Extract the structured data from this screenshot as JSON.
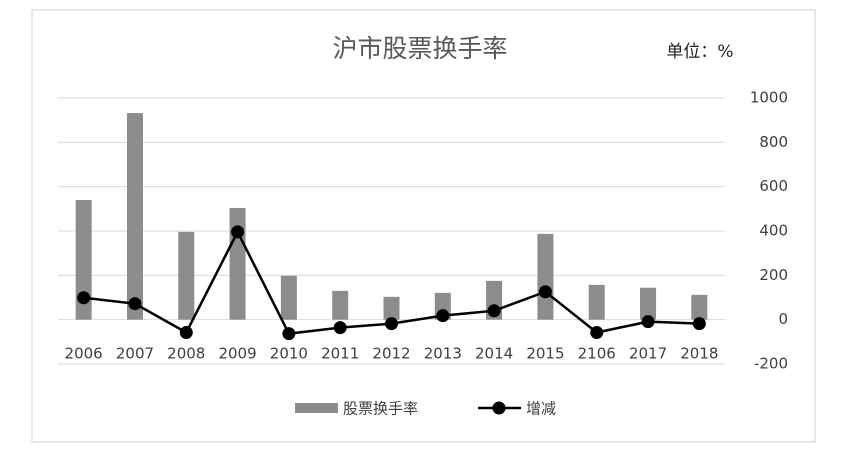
{
  "chart_data": {
    "type": "combo",
    "title": "沪市股票换手率",
    "annotation": "单位：%",
    "categories": [
      "2006",
      "2007",
      "2008",
      "2009",
      "2010",
      "2011",
      "2012",
      "2013",
      "2014",
      "2015",
      "2106",
      "2017",
      "2018"
    ],
    "series": [
      {
        "name": "股票换手率",
        "type": "bar",
        "color": "#8c8c8c",
        "values": [
          540,
          932,
          396,
          504,
          198,
          130,
          103,
          121,
          175,
          387,
          157,
          144,
          112
        ]
      },
      {
        "name": "增减",
        "type": "line",
        "color": "#000000",
        "values": [
          99,
          72,
          -58,
          396,
          -63,
          -36,
          -18,
          18,
          40,
          126,
          -58,
          -9,
          -18
        ]
      }
    ],
    "ylim": [
      -200,
      1000
    ],
    "yticks": [
      -200,
      0,
      200,
      400,
      600,
      800,
      1000
    ],
    "grid": true,
    "legend": "bottom"
  }
}
